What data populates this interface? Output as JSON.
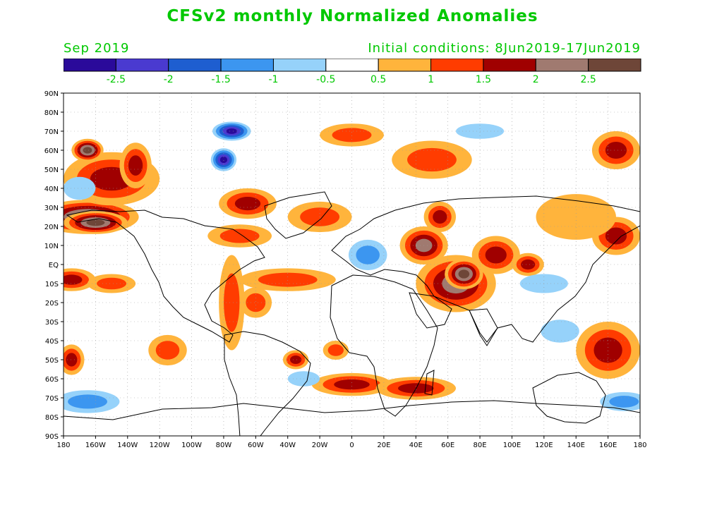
{
  "title": "CFSv2 monthly Normalized Anomalies",
  "valid_month": "Sep 2019",
  "init_conditions": "Initial conditions: 8Jun2019-17Jun2019",
  "colors": {
    "label_green": "#00c800",
    "land_outline": "#000000",
    "frame": "#000000"
  },
  "legend": {
    "bins": [
      {
        "color": "#2a0a9a"
      },
      {
        "color": "#4a3ad0"
      },
      {
        "color": "#1e5ed0"
      },
      {
        "color": "#3c96f0"
      },
      {
        "color": "#96d2fa"
      },
      {
        "color": "#ffffff"
      },
      {
        "color": "#ffb43c"
      },
      {
        "color": "#ff3c00"
      },
      {
        "color": "#a00000"
      },
      {
        "color": "#a07a70"
      },
      {
        "color": "#6e4638"
      }
    ],
    "tick_labels": [
      "-2.5",
      "-2",
      "-1.5",
      "-1",
      "-0.5",
      "0.5",
      "1",
      "1.5",
      "2",
      "2.5"
    ]
  },
  "axes": {
    "lat_labels": [
      "90N",
      "80N",
      "70N",
      "60N",
      "50N",
      "40N",
      "30N",
      "20N",
      "10N",
      "EQ",
      "10S",
      "20S",
      "30S",
      "40S",
      "50S",
      "60S",
      "70S",
      "80S",
      "90S"
    ],
    "lon_labels": [
      "180",
      "160W",
      "140W",
      "120W",
      "100W",
      "80W",
      "60W",
      "40W",
      "20W",
      "0",
      "20E",
      "40E",
      "60E",
      "80E",
      "100E",
      "120E",
      "140E",
      "160E",
      "180"
    ]
  },
  "anomaly_blobs": [
    {
      "lon": -165,
      "lat": 25,
      "rx": 32,
      "ry": 9,
      "level": 2.7
    },
    {
      "lon": -160,
      "lat": 22,
      "rx": 20,
      "ry": 6,
      "level": 2.9
    },
    {
      "lon": -150,
      "lat": 45,
      "rx": 30,
      "ry": 14,
      "level": 1.9
    },
    {
      "lon": -165,
      "lat": 60,
      "rx": 10,
      "ry": 6,
      "level": 2.6
    },
    {
      "lon": -135,
      "lat": 52,
      "rx": 10,
      "ry": 12,
      "level": 1.8
    },
    {
      "lon": -175,
      "lat": -8,
      "rx": 15,
      "ry": 6,
      "level": 1.7
    },
    {
      "lon": -150,
      "lat": -10,
      "rx": 15,
      "ry": 5,
      "level": 1.3
    },
    {
      "lon": -175,
      "lat": -50,
      "rx": 8,
      "ry": 8,
      "level": 1.6
    },
    {
      "lon": -115,
      "lat": -45,
      "rx": 12,
      "ry": 8,
      "level": 1.4
    },
    {
      "lon": -65,
      "lat": 32,
      "rx": 18,
      "ry": 8,
      "level": 1.6
    },
    {
      "lon": -70,
      "lat": 15,
      "rx": 20,
      "ry": 6,
      "level": 1.3
    },
    {
      "lon": -40,
      "lat": -8,
      "rx": 30,
      "ry": 6,
      "level": 1.1
    },
    {
      "lon": -35,
      "lat": -50,
      "rx": 8,
      "ry": 5,
      "level": 1.5
    },
    {
      "lon": -10,
      "lat": -45,
      "rx": 8,
      "ry": 5,
      "level": 1.4
    },
    {
      "lon": 0,
      "lat": -63,
      "rx": 25,
      "ry": 6,
      "level": 1.5
    },
    {
      "lon": 40,
      "lat": -65,
      "rx": 25,
      "ry": 6,
      "level": 1.5
    },
    {
      "lon": 45,
      "lat": 10,
      "rx": 15,
      "ry": 10,
      "level": 2.0
    },
    {
      "lon": 55,
      "lat": 25,
      "rx": 10,
      "ry": 8,
      "level": 1.8
    },
    {
      "lon": 65,
      "lat": -10,
      "rx": 25,
      "ry": 15,
      "level": 2.3
    },
    {
      "lon": 70,
      "lat": -5,
      "rx": 12,
      "ry": 8,
      "level": 2.7
    },
    {
      "lon": 90,
      "lat": 5,
      "rx": 15,
      "ry": 10,
      "level": 1.9
    },
    {
      "lon": 110,
      "lat": 0,
      "rx": 10,
      "ry": 6,
      "level": 1.6
    },
    {
      "lon": 165,
      "lat": 15,
      "rx": 15,
      "ry": 10,
      "level": 1.9
    },
    {
      "lon": 160,
      "lat": -45,
      "rx": 20,
      "ry": 15,
      "level": 1.9
    },
    {
      "lon": 165,
      "lat": 60,
      "rx": 15,
      "ry": 10,
      "level": 1.8
    },
    {
      "lon": 0,
      "lat": 68,
      "rx": 20,
      "ry": 6,
      "level": 1.3
    },
    {
      "lon": 50,
      "lat": 55,
      "rx": 25,
      "ry": 10,
      "level": 1.0
    },
    {
      "lon": -75,
      "lat": -20,
      "rx": 8,
      "ry": 25,
      "level": 1.2
    },
    {
      "lon": -60,
      "lat": -20,
      "rx": 10,
      "ry": 8,
      "level": 1.0
    },
    {
      "lon": -20,
      "lat": 25,
      "rx": 20,
      "ry": 8,
      "level": 1.1
    },
    {
      "lon": 140,
      "lat": 25,
      "rx": 25,
      "ry": 12,
      "level": 0.9
    },
    {
      "lon": -75,
      "lat": 70,
      "rx": 12,
      "ry": 5,
      "level": -2.6
    },
    {
      "lon": -80,
      "lat": 55,
      "rx": 8,
      "ry": 6,
      "level": -2.8
    },
    {
      "lon": 10,
      "lat": 5,
      "rx": 12,
      "ry": 8,
      "level": -1.2
    },
    {
      "lon": -170,
      "lat": 40,
      "rx": 10,
      "ry": 6,
      "level": -0.8
    },
    {
      "lon": -165,
      "lat": -72,
      "rx": 20,
      "ry": 6,
      "level": -1.2
    },
    {
      "lon": 170,
      "lat": -72,
      "rx": 15,
      "ry": 5,
      "level": -1.4
    },
    {
      "lon": 120,
      "lat": -10,
      "rx": 15,
      "ry": 5,
      "level": -0.8
    },
    {
      "lon": 130,
      "lat": -35,
      "rx": 12,
      "ry": 6,
      "level": -0.7
    },
    {
      "lon": 80,
      "lat": 70,
      "rx": 15,
      "ry": 4,
      "level": -0.8
    },
    {
      "lon": -30,
      "lat": -60,
      "rx": 10,
      "ry": 4,
      "level": -0.6
    }
  ]
}
